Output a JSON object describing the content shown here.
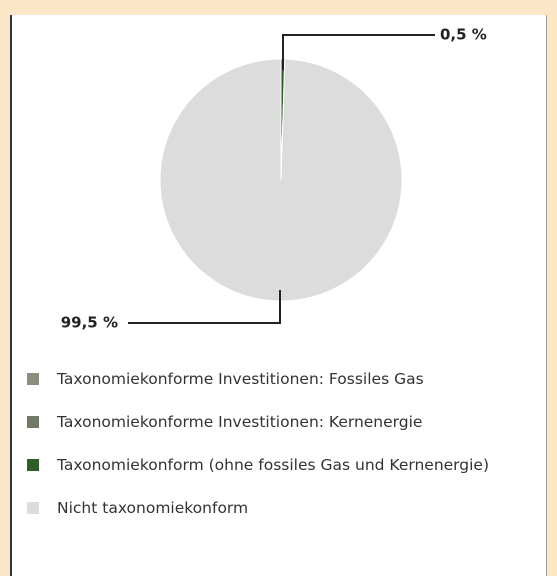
{
  "chart_data": {
    "type": "pie",
    "categories": [
      "Taxonomiekonforme Investitionen: Fossiles Gas",
      "Taxonomiekonforme Investitionen: Kernenergie",
      "Taxonomiekonform (ohne fossiles Gas und Kernenergie)",
      "Nicht taxonomiekonform"
    ],
    "values": [
      0,
      0,
      0.5,
      99.5
    ],
    "value_labels": [
      null,
      null,
      "0,5 %",
      "99,5 %"
    ],
    "colors": [
      "#8e8e80",
      "#707a66",
      "#2f5e2b",
      "#dcdcdc"
    ]
  }
}
